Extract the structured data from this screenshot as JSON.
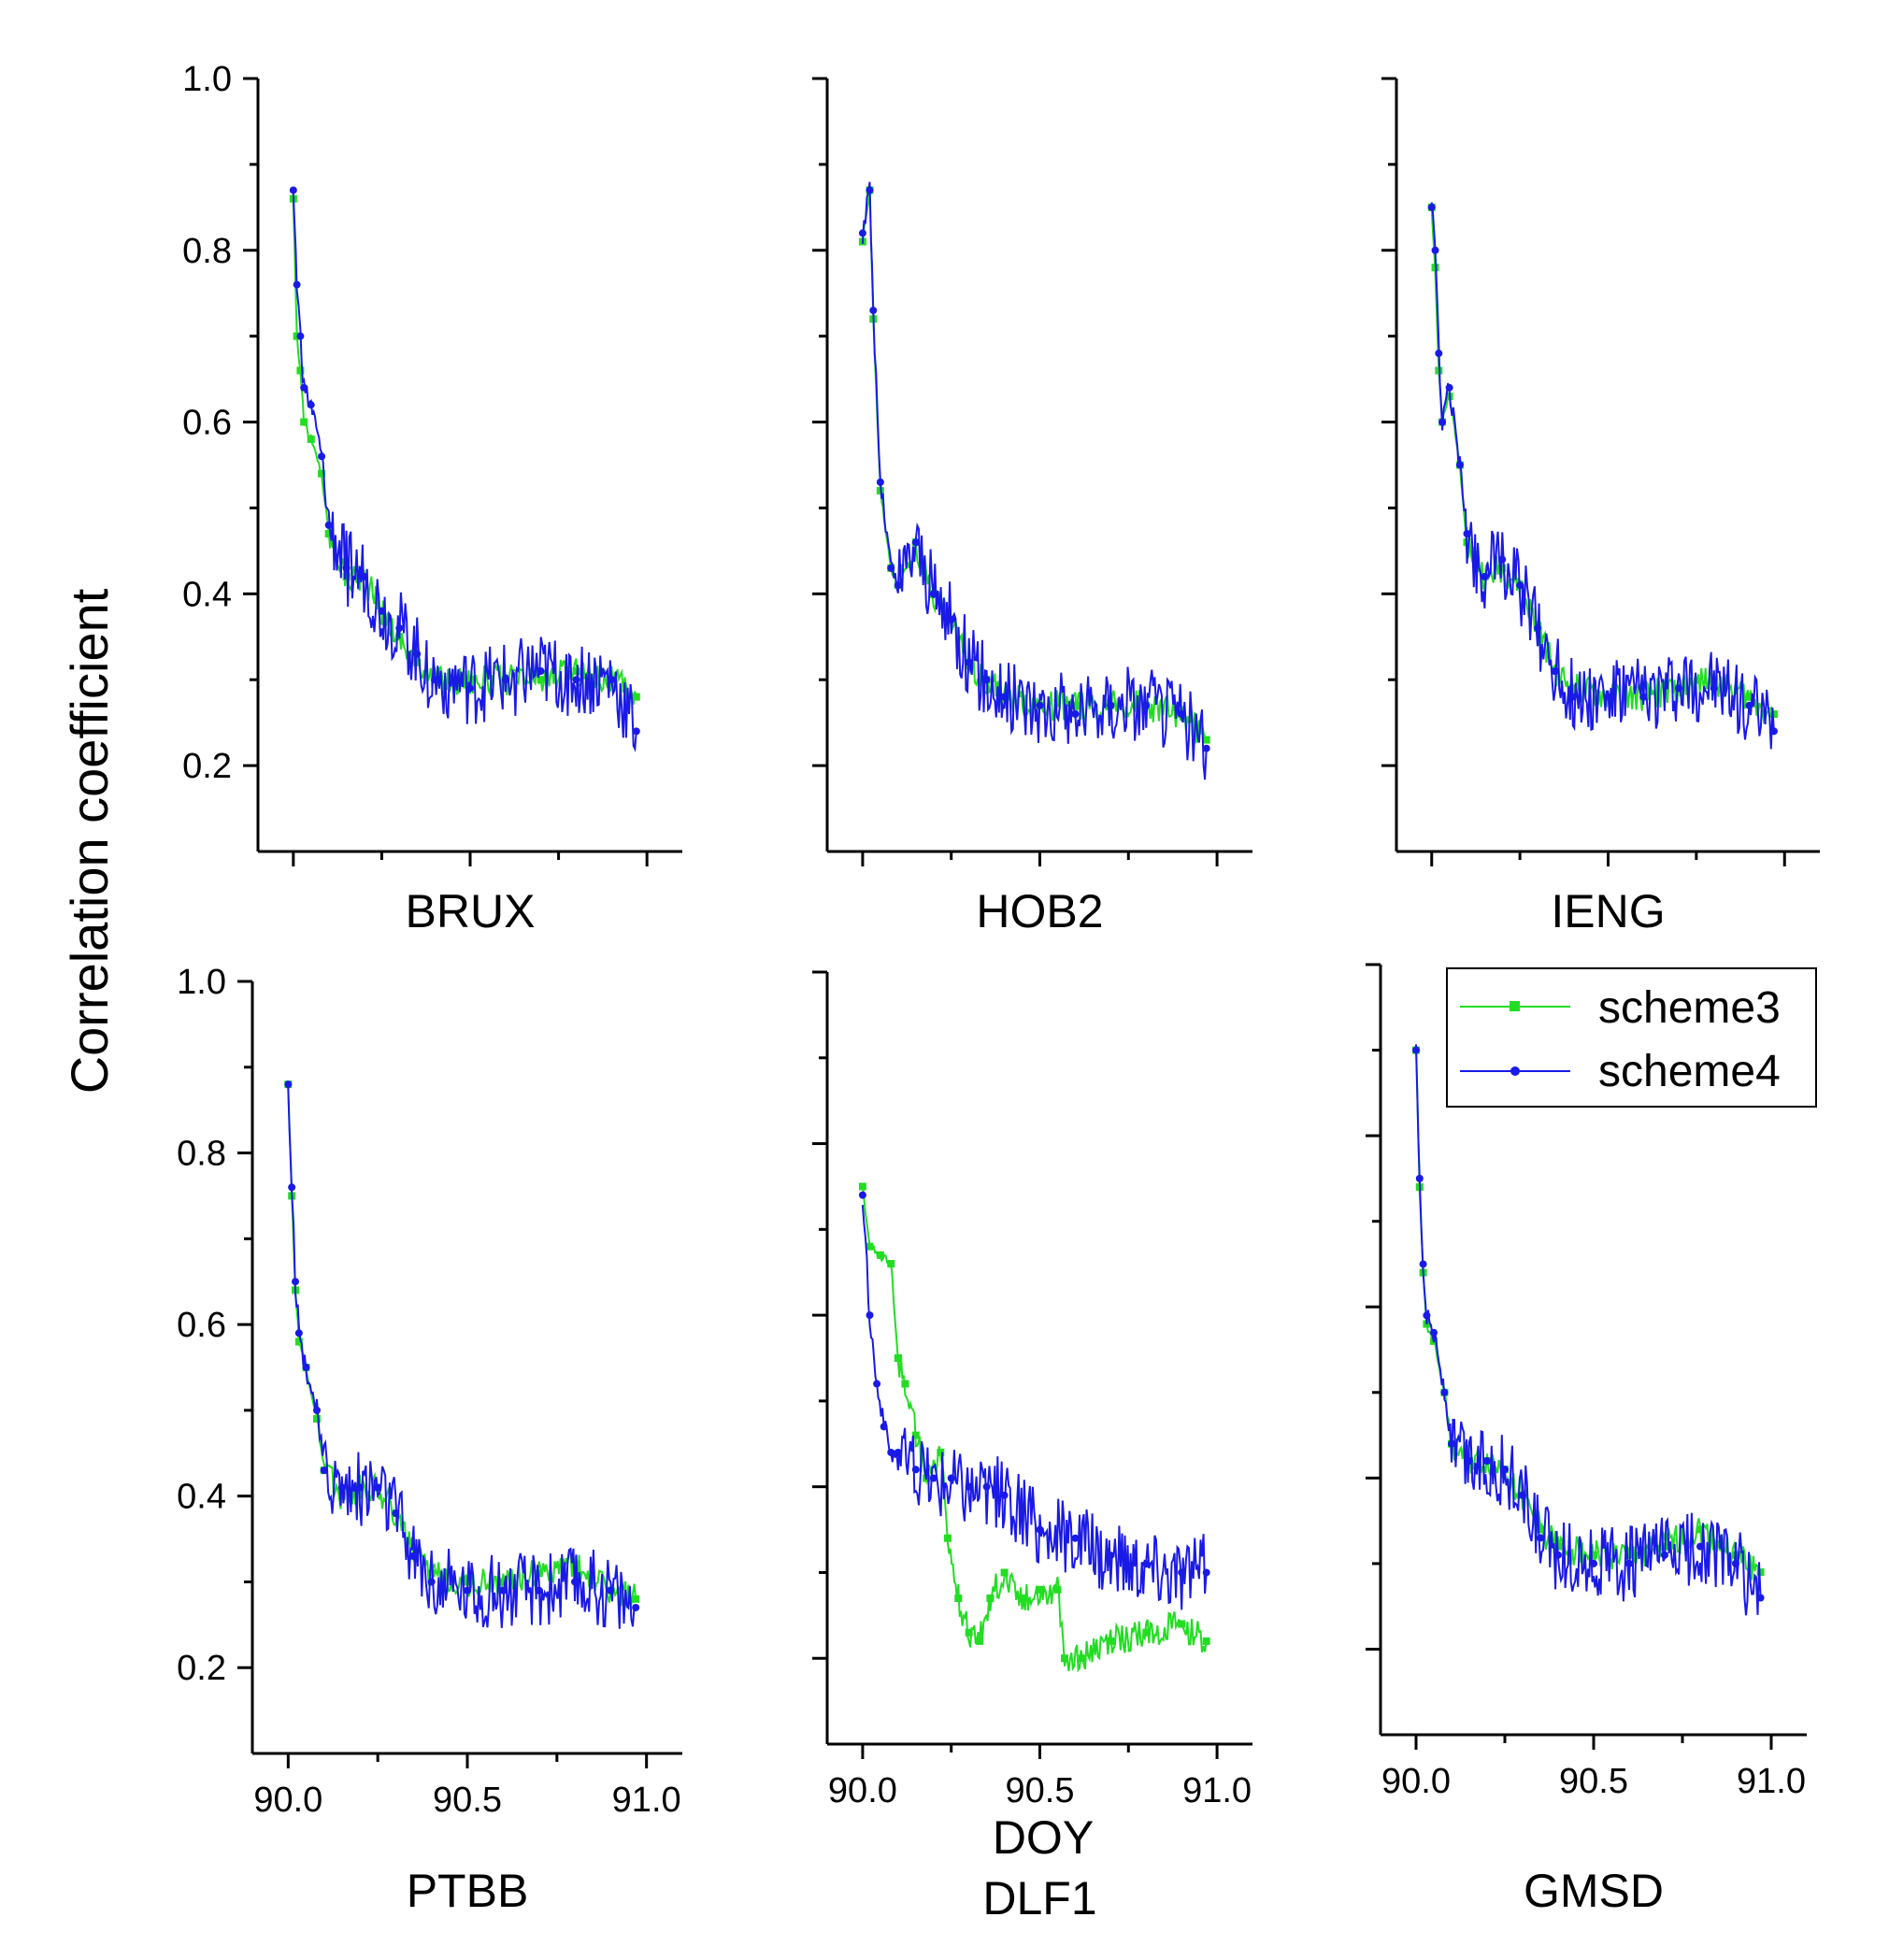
{
  "chart_data": {
    "type": "line",
    "ylabel": "Correlation coefficient",
    "shared_xlabel": "DOY",
    "xlim": [
      89.9,
      91.1
    ],
    "ylim": [
      0.1,
      1.0
    ],
    "xticks": [
      "90.0",
      "90.5",
      "91.0"
    ],
    "yticks": [
      "0.2",
      "0.4",
      "0.6",
      "0.8",
      "1.0"
    ],
    "legend": {
      "placement": "top-right of GMSD panel",
      "entries": [
        {
          "name": "scheme3",
          "color": "#22dd22",
          "marker": "square"
        },
        {
          "name": "scheme4",
          "color": "#1a1ae6",
          "marker": "circle"
        }
      ]
    },
    "panels": [
      {
        "station": "BRUX",
        "series": [
          {
            "name": "scheme3",
            "x": [
              90.0,
              90.01,
              90.02,
              90.03,
              90.05,
              90.08,
              90.1,
              90.15,
              90.2,
              90.25,
              90.3,
              90.35,
              90.4,
              90.45,
              90.5,
              90.6,
              90.7,
              90.8,
              90.9,
              90.97
            ],
            "values": [
              0.86,
              0.7,
              0.66,
              0.6,
              0.58,
              0.54,
              0.47,
              0.42,
              0.42,
              0.38,
              0.35,
              0.32,
              0.3,
              0.3,
              0.3,
              0.3,
              0.3,
              0.31,
              0.3,
              0.28
            ]
          },
          {
            "name": "scheme4",
            "x": [
              90.0,
              90.01,
              90.02,
              90.03,
              90.05,
              90.08,
              90.1,
              90.15,
              90.2,
              90.25,
              90.3,
              90.35,
              90.4,
              90.45,
              90.5,
              90.6,
              90.7,
              90.8,
              90.9,
              90.97
            ],
            "values": [
              0.87,
              0.76,
              0.7,
              0.64,
              0.62,
              0.56,
              0.48,
              0.43,
              0.42,
              0.38,
              0.36,
              0.33,
              0.3,
              0.3,
              0.29,
              0.3,
              0.31,
              0.3,
              0.3,
              0.24
            ]
          }
        ]
      },
      {
        "station": "HOB2",
        "series": [
          {
            "name": "scheme3",
            "x": [
              90.0,
              90.02,
              90.03,
              90.05,
              90.08,
              90.1,
              90.15,
              90.2,
              90.25,
              90.3,
              90.35,
              90.4,
              90.5,
              90.6,
              90.7,
              90.8,
              90.9,
              90.97
            ],
            "values": [
              0.81,
              0.87,
              0.72,
              0.52,
              0.43,
              0.41,
              0.46,
              0.4,
              0.37,
              0.32,
              0.3,
              0.28,
              0.27,
              0.27,
              0.27,
              0.27,
              0.26,
              0.23
            ]
          },
          {
            "name": "scheme4",
            "x": [
              90.0,
              90.02,
              90.03,
              90.05,
              90.08,
              90.1,
              90.15,
              90.2,
              90.25,
              90.3,
              90.35,
              90.4,
              90.5,
              90.6,
              90.7,
              90.8,
              90.9,
              90.97
            ],
            "values": [
              0.82,
              0.87,
              0.73,
              0.53,
              0.43,
              0.41,
              0.46,
              0.4,
              0.37,
              0.32,
              0.3,
              0.28,
              0.27,
              0.26,
              0.27,
              0.27,
              0.26,
              0.22
            ]
          }
        ]
      },
      {
        "station": "IENG",
        "series": [
          {
            "name": "scheme3",
            "x": [
              90.0,
              90.01,
              90.02,
              90.03,
              90.05,
              90.08,
              90.1,
              90.15,
              90.2,
              90.25,
              90.3,
              90.35,
              90.4,
              90.5,
              90.6,
              90.7,
              90.8,
              90.9,
              90.97
            ],
            "values": [
              0.85,
              0.78,
              0.66,
              0.6,
              0.63,
              0.55,
              0.46,
              0.42,
              0.43,
              0.41,
              0.36,
              0.31,
              0.29,
              0.28,
              0.28,
              0.29,
              0.3,
              0.28,
              0.26
            ]
          },
          {
            "name": "scheme4",
            "x": [
              90.0,
              90.01,
              90.02,
              90.03,
              90.05,
              90.08,
              90.1,
              90.15,
              90.2,
              90.25,
              90.3,
              90.35,
              90.4,
              90.5,
              90.6,
              90.7,
              90.8,
              90.9,
              90.97
            ],
            "values": [
              0.85,
              0.8,
              0.68,
              0.6,
              0.64,
              0.55,
              0.47,
              0.42,
              0.44,
              0.41,
              0.36,
              0.31,
              0.28,
              0.28,
              0.28,
              0.29,
              0.29,
              0.27,
              0.24
            ]
          }
        ]
      },
      {
        "station": "PTBB",
        "series": [
          {
            "name": "scheme3",
            "x": [
              90.0,
              90.01,
              90.02,
              90.03,
              90.05,
              90.08,
              90.1,
              90.15,
              90.2,
              90.25,
              90.3,
              90.35,
              90.4,
              90.5,
              90.6,
              90.7,
              90.8,
              90.9,
              90.97
            ],
            "values": [
              0.88,
              0.75,
              0.64,
              0.58,
              0.55,
              0.49,
              0.43,
              0.4,
              0.41,
              0.41,
              0.38,
              0.33,
              0.31,
              0.3,
              0.3,
              0.31,
              0.32,
              0.29,
              0.28
            ]
          },
          {
            "name": "scheme4",
            "x": [
              90.0,
              90.01,
              90.02,
              90.03,
              90.05,
              90.08,
              90.1,
              90.15,
              90.2,
              90.25,
              90.3,
              90.35,
              90.4,
              90.5,
              90.6,
              90.7,
              90.8,
              90.9,
              90.97
            ],
            "values": [
              0.88,
              0.76,
              0.65,
              0.59,
              0.55,
              0.5,
              0.43,
              0.41,
              0.41,
              0.41,
              0.38,
              0.33,
              0.3,
              0.29,
              0.29,
              0.29,
              0.3,
              0.29,
              0.27
            ]
          }
        ]
      },
      {
        "station": "DLF1",
        "series": [
          {
            "name": "scheme3",
            "x": [
              90.0,
              90.02,
              90.05,
              90.08,
              90.1,
              90.12,
              90.15,
              90.18,
              90.22,
              90.24,
              90.27,
              90.3,
              90.33,
              90.36,
              90.4,
              90.45,
              90.5,
              90.55,
              90.57,
              90.62,
              90.7,
              90.8,
              90.9,
              90.97
            ],
            "values": [
              0.75,
              0.68,
              0.67,
              0.66,
              0.55,
              0.52,
              0.46,
              0.41,
              0.44,
              0.34,
              0.27,
              0.23,
              0.22,
              0.27,
              0.3,
              0.27,
              0.28,
              0.28,
              0.2,
              0.2,
              0.22,
              0.23,
              0.24,
              0.22
            ]
          },
          {
            "name": "scheme4",
            "x": [
              90.0,
              90.02,
              90.04,
              90.06,
              90.08,
              90.1,
              90.15,
              90.2,
              90.25,
              90.3,
              90.35,
              90.4,
              90.5,
              90.6,
              90.7,
              90.8,
              90.9,
              90.97
            ],
            "values": [
              0.74,
              0.6,
              0.52,
              0.47,
              0.44,
              0.44,
              0.42,
              0.41,
              0.41,
              0.4,
              0.4,
              0.39,
              0.35,
              0.34,
              0.32,
              0.31,
              0.3,
              0.3
            ]
          }
        ]
      },
      {
        "station": "GMSD",
        "series": [
          {
            "name": "scheme3",
            "x": [
              90.0,
              90.01,
              90.02,
              90.03,
              90.05,
              90.08,
              90.1,
              90.15,
              90.2,
              90.25,
              90.3,
              90.35,
              90.4,
              90.5,
              90.6,
              90.7,
              90.8,
              90.9,
              90.97
            ],
            "values": [
              0.9,
              0.74,
              0.64,
              0.58,
              0.56,
              0.5,
              0.44,
              0.42,
              0.42,
              0.41,
              0.38,
              0.34,
              0.32,
              0.31,
              0.31,
              0.32,
              0.34,
              0.31,
              0.29
            ]
          },
          {
            "name": "scheme4",
            "x": [
              90.0,
              90.01,
              90.02,
              90.03,
              90.05,
              90.08,
              90.1,
              90.15,
              90.2,
              90.25,
              90.3,
              90.35,
              90.4,
              90.5,
              90.6,
              90.7,
              90.8,
              90.9,
              90.97
            ],
            "values": [
              0.9,
              0.75,
              0.65,
              0.59,
              0.57,
              0.5,
              0.44,
              0.42,
              0.42,
              0.41,
              0.38,
              0.33,
              0.31,
              0.3,
              0.3,
              0.31,
              0.32,
              0.3,
              0.26
            ]
          }
        ]
      }
    ]
  }
}
